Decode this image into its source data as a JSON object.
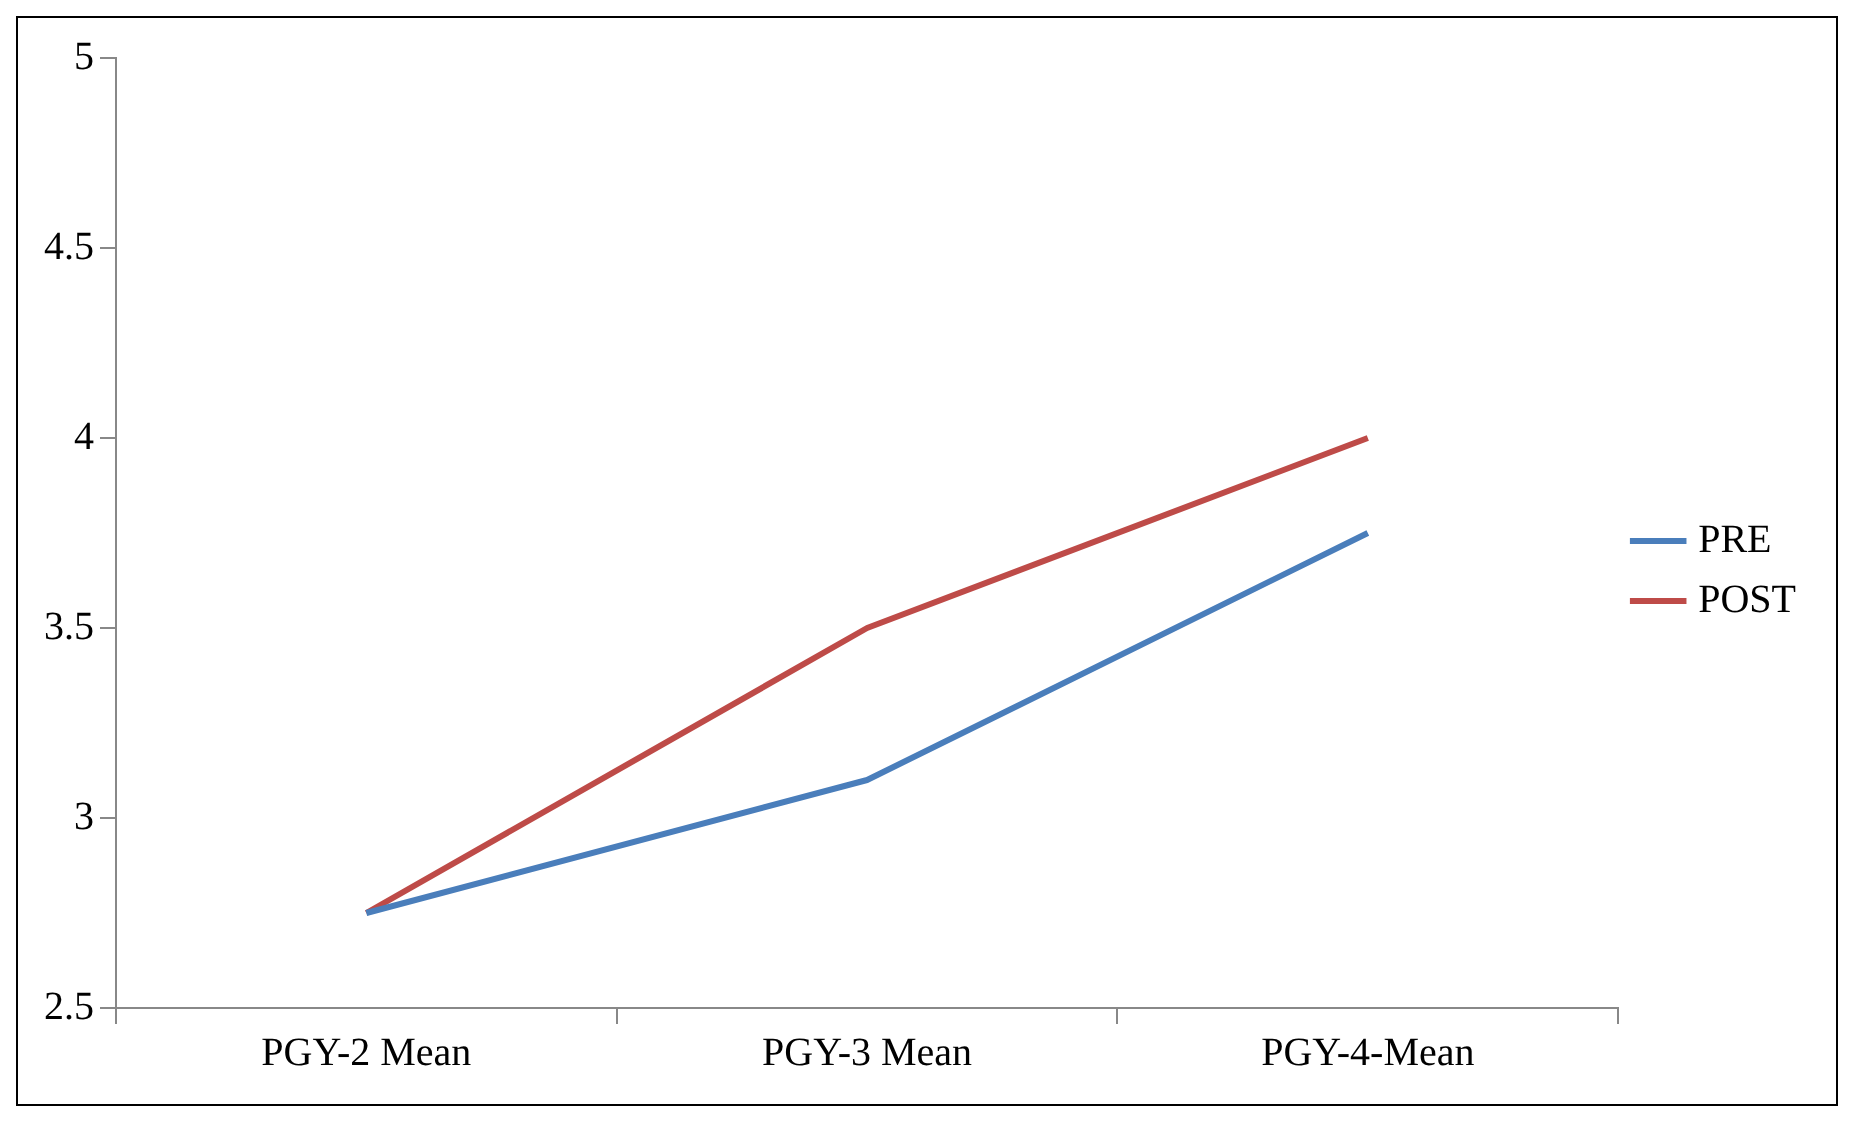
{
  "chart_data": {
    "type": "line",
    "categories": [
      "PGY-2 Mean",
      "PGY-3 Mean",
      "PGY-4-Mean"
    ],
    "series": [
      {
        "name": "PRE",
        "color": "#4a7ebb",
        "values": [
          2.75,
          3.1,
          3.75
        ]
      },
      {
        "name": "POST",
        "color": "#be4b48",
        "values": [
          2.75,
          3.5,
          4.0
        ]
      }
    ],
    "ylim": [
      2.5,
      5
    ],
    "yticks": [
      2.5,
      3,
      3.5,
      4,
      4.5,
      5
    ],
    "grid": false,
    "legend": "right",
    "marker": "none"
  }
}
